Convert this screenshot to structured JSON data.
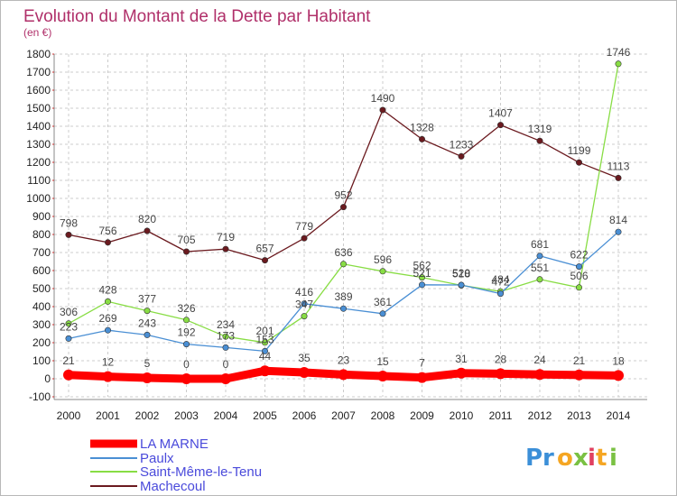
{
  "chart_data": {
    "type": "line",
    "title": "Evolution du Montant de la Dette par Habitant",
    "unit_label": "(en €)",
    "xlabel": "",
    "ylabel": "",
    "x": [
      "2000",
      "2001",
      "2002",
      "2003",
      "2004",
      "2005",
      "2006",
      "2007",
      "2008",
      "2009",
      "2010",
      "2011",
      "2012",
      "2013",
      "2014"
    ],
    "ylim": [
      -100,
      1800
    ],
    "yticks": [
      -100,
      0,
      100,
      200,
      300,
      400,
      500,
      600,
      700,
      800,
      900,
      1000,
      1100,
      1200,
      1300,
      1400,
      1500,
      1600,
      1700,
      1800
    ],
    "grid": true,
    "legend_position": "bottom-left",
    "series": [
      {
        "name": "LA MARNE",
        "color": "#ff0000",
        "values": [
          21,
          12,
          5,
          0,
          0,
          44,
          35,
          23,
          15,
          7,
          31,
          28,
          24,
          21,
          18
        ]
      },
      {
        "name": "Paulx",
        "color": "#4a8fd4",
        "values": [
          223,
          269,
          243,
          192,
          173,
          153,
          416,
          389,
          361,
          521,
          520,
          472,
          681,
          622,
          814
        ]
      },
      {
        "name": "Saint-Même-le-Tenu",
        "color": "#88dd44",
        "values": [
          306,
          428,
          377,
          326,
          234,
          201,
          347,
          636,
          596,
          562,
          518,
          484,
          551,
          506,
          1746
        ]
      },
      {
        "name": "Machecoul",
        "color": "#6b1a1f",
        "values": [
          798,
          756,
          820,
          705,
          719,
          657,
          779,
          952,
          1490,
          1328,
          1233,
          1407,
          1319,
          1199,
          1113
        ]
      }
    ]
  },
  "logo": {
    "text_p": "Pr",
    "text_o": "o",
    "text_x": "x",
    "text_i": "i",
    "text_t": "t",
    "text_i2": "i"
  },
  "colors": {
    "title": "#b0306a",
    "legend_text": "#4a4adb",
    "grid": "#cccccc"
  }
}
